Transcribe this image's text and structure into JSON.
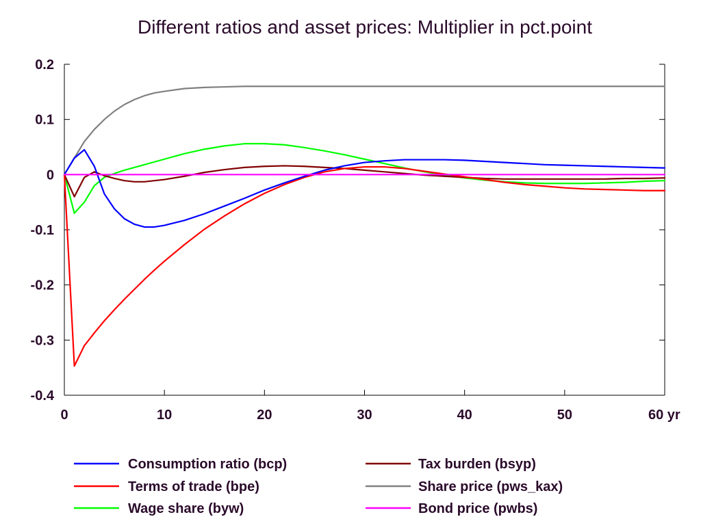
{
  "chart_data": {
    "type": "line",
    "title": "Different ratios and asset prices: Multiplier in pct.point",
    "xlabel": "",
    "ylabel": "",
    "xlim": [
      0,
      60
    ],
    "ylim": [
      -0.4,
      0.2
    ],
    "x_ticks": [
      0,
      10,
      20,
      30,
      40,
      50,
      60
    ],
    "x_tick_labels": [
      "0",
      "10",
      "20",
      "30",
      "40",
      "50",
      "60 yr"
    ],
    "y_ticks": [
      0.2,
      0.1,
      0,
      -0.1,
      -0.2,
      -0.3,
      -0.4
    ],
    "y_tick_labels": [
      "0.2",
      "0.1",
      "0",
      "-0.1",
      "-0.2",
      "-0.3",
      "-0.4"
    ],
    "grid": false,
    "legend_position": "bottom",
    "series": [
      {
        "name": "Consumption ratio (bcp)",
        "color": "#0000ff",
        "points": [
          [
            0,
            0
          ],
          [
            1,
            0.03
          ],
          [
            2,
            0.045
          ],
          [
            3,
            0.015
          ],
          [
            4,
            -0.035
          ],
          [
            5,
            -0.062
          ],
          [
            6,
            -0.08
          ],
          [
            7,
            -0.09
          ],
          [
            8,
            -0.095
          ],
          [
            9,
            -0.095
          ],
          [
            10,
            -0.092
          ],
          [
            12,
            -0.083
          ],
          [
            14,
            -0.071
          ],
          [
            16,
            -0.057
          ],
          [
            18,
            -0.043
          ],
          [
            20,
            -0.028
          ],
          [
            22,
            -0.015
          ],
          [
            24,
            -0.003
          ],
          [
            26,
            0.008
          ],
          [
            28,
            0.016
          ],
          [
            30,
            0.022
          ],
          [
            32,
            0.025
          ],
          [
            34,
            0.027
          ],
          [
            36,
            0.027
          ],
          [
            38,
            0.027
          ],
          [
            40,
            0.026
          ],
          [
            42,
            0.024
          ],
          [
            44,
            0.022
          ],
          [
            46,
            0.02
          ],
          [
            48,
            0.018
          ],
          [
            50,
            0.017
          ],
          [
            52,
            0.016
          ],
          [
            54,
            0.015
          ],
          [
            56,
            0.014
          ],
          [
            58,
            0.013
          ],
          [
            60,
            0.012
          ]
        ]
      },
      {
        "name": "Terms of trade (bpe)",
        "color": "#ff0000",
        "points": [
          [
            0,
            0
          ],
          [
            1,
            -0.347
          ],
          [
            2,
            -0.31
          ],
          [
            3,
            -0.287
          ],
          [
            4,
            -0.265
          ],
          [
            5,
            -0.245
          ],
          [
            6,
            -0.226
          ],
          [
            7,
            -0.208
          ],
          [
            8,
            -0.19
          ],
          [
            9,
            -0.173
          ],
          [
            10,
            -0.157
          ],
          [
            12,
            -0.127
          ],
          [
            14,
            -0.099
          ],
          [
            16,
            -0.075
          ],
          [
            18,
            -0.053
          ],
          [
            20,
            -0.034
          ],
          [
            22,
            -0.018
          ],
          [
            24,
            -0.005
          ],
          [
            26,
            0.005
          ],
          [
            28,
            0.011
          ],
          [
            30,
            0.014
          ],
          [
            32,
            0.014
          ],
          [
            34,
            0.011
          ],
          [
            36,
            0.006
          ],
          [
            38,
            0.001
          ],
          [
            40,
            -0.004
          ],
          [
            42,
            -0.009
          ],
          [
            44,
            -0.014
          ],
          [
            46,
            -0.018
          ],
          [
            48,
            -0.021
          ],
          [
            50,
            -0.024
          ],
          [
            52,
            -0.026
          ],
          [
            54,
            -0.027
          ],
          [
            56,
            -0.028
          ],
          [
            58,
            -0.029
          ],
          [
            60,
            -0.029
          ]
        ]
      },
      {
        "name": "Wage share (byw)",
        "color": "#00ff00",
        "points": [
          [
            0,
            0
          ],
          [
            1,
            -0.07
          ],
          [
            2,
            -0.05
          ],
          [
            3,
            -0.02
          ],
          [
            4,
            -0.005
          ],
          [
            5,
            0.002
          ],
          [
            6,
            0.008
          ],
          [
            8,
            0.018
          ],
          [
            10,
            0.028
          ],
          [
            12,
            0.038
          ],
          [
            14,
            0.046
          ],
          [
            16,
            0.052
          ],
          [
            18,
            0.056
          ],
          [
            20,
            0.056
          ],
          [
            22,
            0.054
          ],
          [
            24,
            0.049
          ],
          [
            26,
            0.043
          ],
          [
            28,
            0.036
          ],
          [
            30,
            0.028
          ],
          [
            32,
            0.02
          ],
          [
            34,
            0.012
          ],
          [
            36,
            0.005
          ],
          [
            38,
            -0.001
          ],
          [
            40,
            -0.006
          ],
          [
            42,
            -0.01
          ],
          [
            44,
            -0.013
          ],
          [
            46,
            -0.015
          ],
          [
            48,
            -0.016
          ],
          [
            50,
            -0.016
          ],
          [
            52,
            -0.016
          ],
          [
            54,
            -0.015
          ],
          [
            56,
            -0.014
          ],
          [
            58,
            -0.012
          ],
          [
            60,
            -0.011
          ]
        ]
      },
      {
        "name": "Tax burden (bsyp)",
        "color": "#800000",
        "points": [
          [
            0,
            0
          ],
          [
            1,
            -0.04
          ],
          [
            2,
            -0.005
          ],
          [
            3,
            0.005
          ],
          [
            4,
            -0.002
          ],
          [
            5,
            -0.007
          ],
          [
            6,
            -0.011
          ],
          [
            7,
            -0.013
          ],
          [
            8,
            -0.013
          ],
          [
            10,
            -0.009
          ],
          [
            12,
            -0.003
          ],
          [
            14,
            0.004
          ],
          [
            16,
            0.009
          ],
          [
            18,
            0.013
          ],
          [
            20,
            0.015
          ],
          [
            22,
            0.016
          ],
          [
            24,
            0.015
          ],
          [
            26,
            0.013
          ],
          [
            28,
            0.011
          ],
          [
            30,
            0.008
          ],
          [
            32,
            0.005
          ],
          [
            34,
            0.002
          ],
          [
            36,
            -0.001
          ],
          [
            38,
            -0.003
          ],
          [
            40,
            -0.005
          ],
          [
            42,
            -0.007
          ],
          [
            44,
            -0.008
          ],
          [
            46,
            -0.008
          ],
          [
            48,
            -0.008
          ],
          [
            50,
            -0.008
          ],
          [
            52,
            -0.008
          ],
          [
            54,
            -0.008
          ],
          [
            56,
            -0.007
          ],
          [
            58,
            -0.007
          ],
          [
            60,
            -0.006
          ]
        ]
      },
      {
        "name": "Share price (pws_kax)",
        "color": "#808080",
        "points": [
          [
            0,
            0
          ],
          [
            1,
            0.03
          ],
          [
            2,
            0.06
          ],
          [
            3,
            0.082
          ],
          [
            4,
            0.1
          ],
          [
            5,
            0.115
          ],
          [
            6,
            0.127
          ],
          [
            7,
            0.136
          ],
          [
            8,
            0.143
          ],
          [
            9,
            0.148
          ],
          [
            10,
            0.151
          ],
          [
            12,
            0.156
          ],
          [
            14,
            0.158
          ],
          [
            16,
            0.159
          ],
          [
            18,
            0.16
          ],
          [
            20,
            0.16
          ],
          [
            25,
            0.16
          ],
          [
            30,
            0.16
          ],
          [
            40,
            0.16
          ],
          [
            50,
            0.16
          ],
          [
            60,
            0.16
          ]
        ]
      },
      {
        "name": "Bond price (pwbs)",
        "color": "#ff00ff",
        "points": [
          [
            0,
            0
          ],
          [
            60,
            0
          ]
        ]
      }
    ]
  }
}
